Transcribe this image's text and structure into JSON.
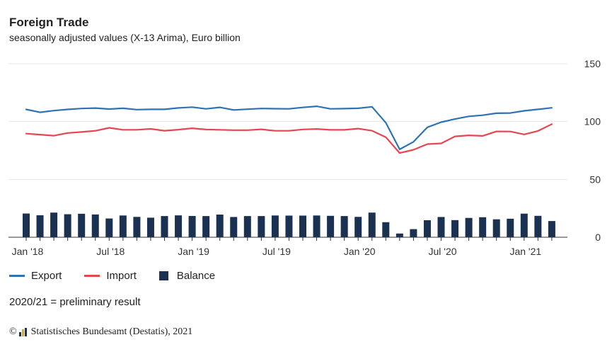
{
  "title": "Foreign Trade",
  "subtitle": "seasonally adjusted values (X-13 Arima), Euro billion",
  "legend": {
    "export": "Export",
    "import": "Import",
    "balance": "Balance"
  },
  "note": "2020/21 = preliminary result",
  "credit": "Statistisches Bundesamt (Destatis), 2021",
  "colors": {
    "export": "#2f72b3",
    "import": "#e5474f",
    "balance": "#1b3152",
    "grid": "#e6e6e6",
    "axis": "#333333"
  },
  "chart_data": {
    "type": "line",
    "x": [
      "2018-01",
      "2018-02",
      "2018-03",
      "2018-04",
      "2018-05",
      "2018-06",
      "2018-07",
      "2018-08",
      "2018-09",
      "2018-10",
      "2018-11",
      "2018-12",
      "2019-01",
      "2019-02",
      "2019-03",
      "2019-04",
      "2019-05",
      "2019-06",
      "2019-07",
      "2019-08",
      "2019-09",
      "2019-10",
      "2019-11",
      "2019-12",
      "2020-01",
      "2020-02",
      "2020-03",
      "2020-04",
      "2020-05",
      "2020-06",
      "2020-07",
      "2020-08",
      "2020-09",
      "2020-10",
      "2020-11",
      "2020-12",
      "2021-01",
      "2021-02",
      "2021-03"
    ],
    "series": [
      {
        "name": "Export",
        "type": "line",
        "values": [
          110.5,
          108,
          109.5,
          110.5,
          111.3,
          111.7,
          110.8,
          111.5,
          110.3,
          110.6,
          110.6,
          111.8,
          112.5,
          111,
          112.3,
          110,
          110.7,
          111.3,
          111.1,
          111,
          112.2,
          113.2,
          111,
          111.2,
          111.5,
          112.8,
          99,
          76,
          82.5,
          95,
          99.5,
          102.2,
          104.5,
          105.5,
          107.2,
          107.4,
          109.3,
          110.6,
          111.9
        ]
      },
      {
        "name": "Import",
        "type": "line",
        "values": [
          89.6,
          88.7,
          87.8,
          90.1,
          91,
          92,
          94.6,
          92.9,
          92.9,
          93.7,
          92.1,
          93,
          94.2,
          93.1,
          92.9,
          92.6,
          92.6,
          93.3,
          92,
          92,
          93.2,
          93.6,
          92.8,
          92.8,
          93.9,
          92.1,
          86.5,
          72.8,
          75.6,
          80.5,
          81.1,
          87.2,
          88.1,
          87.6,
          91.5,
          91.4,
          88.9,
          91.9,
          97.8
        ]
      },
      {
        "name": "Balance",
        "type": "bar",
        "values": [
          20.5,
          19,
          21.3,
          19.9,
          20.3,
          19.7,
          16.2,
          18.8,
          17.6,
          16.9,
          18.3,
          18.9,
          18.4,
          18.3,
          19.6,
          17.5,
          18.3,
          18.3,
          18.8,
          18.7,
          18.7,
          18.8,
          18.5,
          18.3,
          17.6,
          21.3,
          13,
          3.2,
          7,
          14.7,
          17.5,
          14.8,
          16.7,
          17.3,
          15.5,
          16,
          20.4,
          18.5,
          14
        ]
      }
    ],
    "ylim": [
      0,
      150
    ],
    "yticks": [
      0,
      50,
      100,
      150
    ],
    "xtick_labels": [
      "Jan '18",
      "Jul '18",
      "Jan '19",
      "Jul '19",
      "Jan '20",
      "Jul '20",
      "Jan '21"
    ],
    "xtick_index": [
      0,
      6,
      12,
      18,
      24,
      30,
      36
    ],
    "grid": true,
    "y_axis_side": "right",
    "legend_position": "bottom-left"
  }
}
